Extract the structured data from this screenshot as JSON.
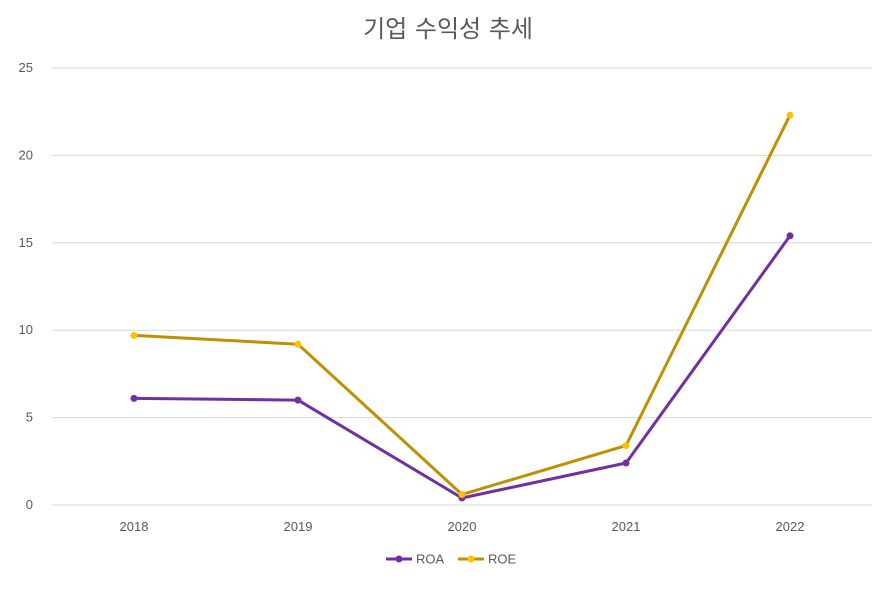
{
  "chart_data": {
    "type": "line",
    "title": "기업 수익성 추세",
    "xlabel": "",
    "ylabel": "",
    "categories": [
      "2018",
      "2019",
      "2020",
      "2021",
      "2022"
    ],
    "ylim": [
      0,
      25
    ],
    "yticks": [
      0,
      5,
      10,
      15,
      20,
      25
    ],
    "grid": true,
    "legend_position": "bottom",
    "series": [
      {
        "name": "ROA",
        "values": [
          6.1,
          6.0,
          0.4,
          2.4,
          15.4
        ],
        "color": "#7030a0",
        "marker_color": "#7030a0"
      },
      {
        "name": "ROE",
        "values": [
          9.7,
          9.2,
          0.6,
          3.4,
          22.3
        ],
        "color": "#bf9000",
        "marker_color": "#ffc000"
      }
    ]
  }
}
